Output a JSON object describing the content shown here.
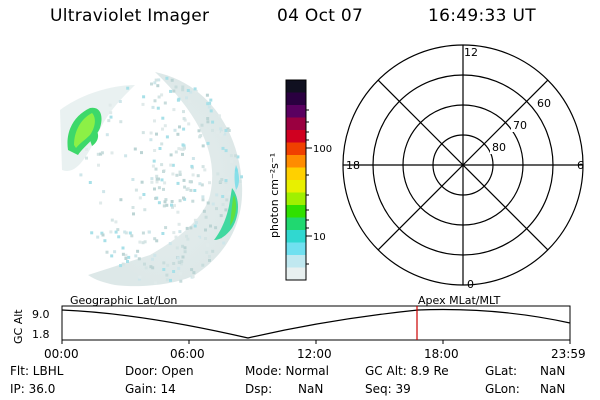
{
  "header": {
    "title": "Ultraviolet Imager",
    "date": "04 Oct 07",
    "time": "16:49:33 UT"
  },
  "colorbar": {
    "label": "photon cm⁻²s⁻¹",
    "ticks": [
      "100",
      "10"
    ],
    "colors": [
      "#101020",
      "#2a0040",
      "#5a0060",
      "#9a0040",
      "#d00020",
      "#f04000",
      "#ff8c00",
      "#ffd000",
      "#e8f000",
      "#a0f000",
      "#30e000",
      "#20d870",
      "#30d8d0",
      "#70e0f0",
      "#c0e8f0",
      "#e8f0f0"
    ]
  },
  "polar": {
    "mlt_labels": [
      "12",
      "18",
      "6",
      "0"
    ],
    "lat_labels": [
      "60",
      "70",
      "80"
    ]
  },
  "timeline": {
    "ylabel": "GC Alt",
    "ymax": "9.0",
    "ymin": "1.8",
    "left_label": "Geographic Lat/Lon",
    "right_label": "Apex  MLat/MLT",
    "ticks": [
      "00:00",
      "06:00",
      "12:00",
      "18:00",
      "23:59"
    ],
    "marker_color": "#cc0000"
  },
  "info": {
    "flt": "Flt: LBHL",
    "ip": "IP: 36.0",
    "door": "Door: Open",
    "gain": "Gain: 14",
    "mode": "Mode: Normal",
    "dsp": "Dsp:",
    "dsp_val": "NaN",
    "gcalt": "GC Alt: 8.9 Re",
    "seq": "Seq: 39",
    "glat": "GLat:",
    "glat_val": "NaN",
    "glon": "GLon:",
    "glon_val": "NaN"
  }
}
